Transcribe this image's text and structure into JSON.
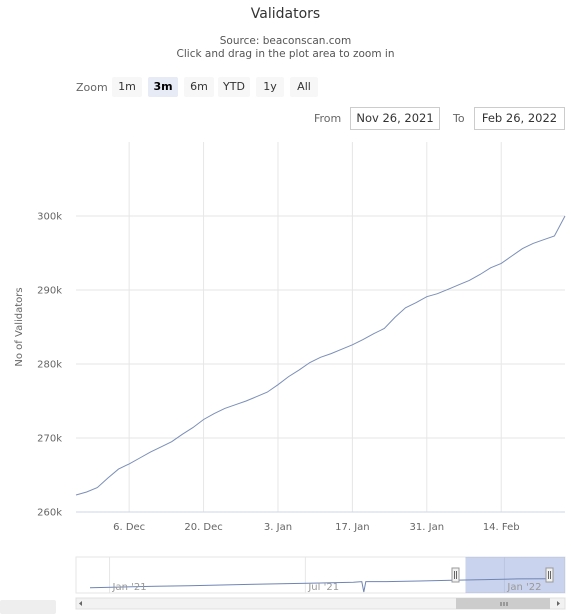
{
  "chart_data": {
    "type": "line",
    "title": "Validators",
    "subtitle_source": "Source: beaconscan.com",
    "subtitle_hint": "Click and drag in the plot area to zoom in",
    "ylabel": "No of Validators",
    "xlim": [
      "2021-11-26",
      "2022-02-26"
    ],
    "ylim": [
      260000,
      310000
    ],
    "y_ticks": [
      260000,
      270000,
      280000,
      290000,
      300000
    ],
    "y_tick_labels": [
      "260k",
      "270k",
      "280k",
      "290k",
      "300k"
    ],
    "x_ticks": [
      "2021-12-06",
      "2021-12-20",
      "2022-01-03",
      "2022-01-17",
      "2022-01-31",
      "2022-02-14"
    ],
    "x_tick_labels": [
      "6. Dec",
      "20. Dec",
      "3. Jan",
      "17. Jan",
      "31. Jan",
      "14. Feb"
    ],
    "grid": true,
    "legend": "none",
    "line_color": "#7b8fb8",
    "series": [
      {
        "x": [
          "2021-11-26",
          "2021-11-28",
          "2021-11-30",
          "2021-12-02",
          "2021-12-04",
          "2021-12-06",
          "2021-12-08",
          "2021-12-10",
          "2021-12-12",
          "2021-12-14",
          "2021-12-16",
          "2021-12-18",
          "2021-12-20",
          "2021-12-22",
          "2021-12-24",
          "2021-12-26",
          "2021-12-28",
          "2021-12-30",
          "2022-01-01",
          "2022-01-03",
          "2022-01-05",
          "2022-01-07",
          "2022-01-09",
          "2022-01-11",
          "2022-01-13",
          "2022-01-15",
          "2022-01-17",
          "2022-01-19",
          "2022-01-21",
          "2022-01-23",
          "2022-01-25",
          "2022-01-27",
          "2022-01-29",
          "2022-01-31",
          "2022-02-02",
          "2022-02-04",
          "2022-02-06",
          "2022-02-08",
          "2022-02-10",
          "2022-02-12",
          "2022-02-14",
          "2022-02-16",
          "2022-02-18",
          "2022-02-20",
          "2022-02-22",
          "2022-02-24",
          "2022-02-26"
        ],
        "y": [
          262300,
          262700,
          263300,
          264600,
          265800,
          266500,
          267300,
          268100,
          268800,
          269500,
          270500,
          271400,
          272500,
          273300,
          274000,
          274500,
          275000,
          275600,
          276200,
          277200,
          278300,
          279200,
          280200,
          280900,
          281400,
          282000,
          282600,
          283300,
          284100,
          284800,
          286300,
          287600,
          288300,
          289100,
          289500,
          290100,
          290700,
          291300,
          292100,
          293000,
          293600,
          294600,
          295600,
          296300,
          296800,
          297300,
          300000
        ]
      }
    ],
    "navigator": {
      "x_tick_labels": [
        "Jan '21",
        "Jul '21",
        "Jan '22"
      ],
      "range_start": "2020-12-01",
      "range_end": "2022-02-26",
      "selected_start": "2021-11-26",
      "selected_end": "2022-02-26",
      "y": [
        0.2,
        0.26,
        0.32,
        0.38,
        0.44,
        0.5,
        0.56,
        0.62,
        0.68,
        0.74,
        0.8,
        0.86,
        0.92,
        0.98,
        1.0
      ],
      "dip_at": "2021-08-24"
    }
  },
  "zoom": {
    "label": "Zoom",
    "buttons": [
      {
        "label": "1m",
        "active": false
      },
      {
        "label": "3m",
        "active": true
      },
      {
        "label": "6m",
        "active": false
      },
      {
        "label": "YTD",
        "active": false
      },
      {
        "label": "1y",
        "active": false
      },
      {
        "label": "All",
        "active": false
      }
    ]
  },
  "range": {
    "from_label": "From",
    "from_value": "Nov 26, 2021",
    "to_label": "To",
    "to_value": "Feb 26, 2022"
  }
}
